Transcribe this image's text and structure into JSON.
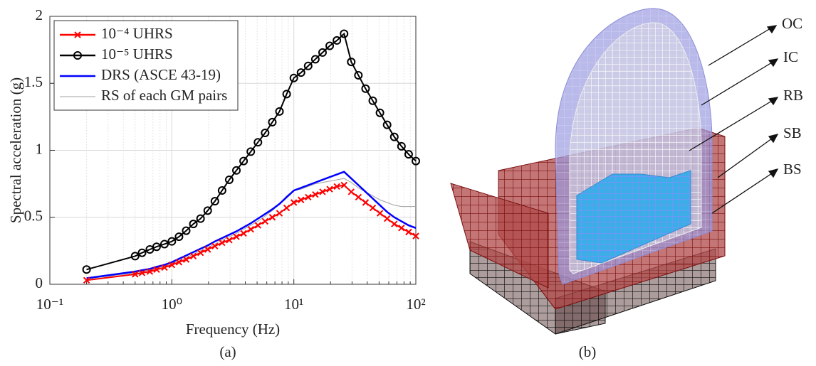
{
  "chart_data": {
    "type": "line",
    "y_label": "Spectral acceleration (g)",
    "x_label": "Frequency (Hz)",
    "caption": "(a)",
    "x": [
      0.2,
      0.5,
      0.57,
      0.66,
      0.75,
      0.87,
      1,
      1.145,
      1.311,
      1.501,
      1.719,
      1.968,
      2.254,
      2.581,
      2.955,
      3.383,
      3.874,
      4.436,
      5.08,
      5.816,
      6.66,
      7.626,
      8.733,
      10,
      11.45,
      13.11,
      15.01,
      17.19,
      19.68,
      22.54,
      25.81,
      29.55,
      33.83,
      38.74,
      44.36,
      50.8,
      58.16,
      66.6,
      76.26,
      87.33,
      100
    ],
    "series": [
      {
        "name": "10⁻⁴ UHRS",
        "color": "#ff0000",
        "marker": "x",
        "values": [
          0.03,
          0.075,
          0.085,
          0.095,
          0.11,
          0.125,
          0.145,
          0.165,
          0.185,
          0.21,
          0.235,
          0.26,
          0.285,
          0.31,
          0.33,
          0.355,
          0.38,
          0.41,
          0.44,
          0.47,
          0.5,
          0.53,
          0.57,
          0.61,
          0.63,
          0.65,
          0.67,
          0.69,
          0.71,
          0.73,
          0.74,
          0.69,
          0.65,
          0.61,
          0.57,
          0.53,
          0.49,
          0.45,
          0.42,
          0.39,
          0.36
        ]
      },
      {
        "name": "10⁻⁵ UHRS",
        "color": "#000000",
        "marker": "o",
        "values": [
          0.11,
          0.21,
          0.235,
          0.26,
          0.28,
          0.3,
          0.32,
          0.355,
          0.4,
          0.45,
          0.49,
          0.55,
          0.62,
          0.7,
          0.78,
          0.85,
          0.92,
          0.99,
          1.06,
          1.13,
          1.21,
          1.29,
          1.42,
          1.54,
          1.58,
          1.63,
          1.68,
          1.73,
          1.78,
          1.82,
          1.87,
          1.66,
          1.56,
          1.46,
          1.37,
          1.28,
          1.19,
          1.1,
          1.03,
          0.97,
          0.92
        ]
      },
      {
        "name": "DRS (ASCE 43-19)",
        "color": "#0000ff",
        "marker": "none",
        "values": [
          0.045,
          0.095,
          0.105,
          0.115,
          0.13,
          0.145,
          0.165,
          0.19,
          0.215,
          0.24,
          0.265,
          0.29,
          0.32,
          0.345,
          0.37,
          0.395,
          0.425,
          0.455,
          0.49,
          0.525,
          0.56,
          0.6,
          0.65,
          0.7,
          0.72,
          0.74,
          0.76,
          0.78,
          0.8,
          0.82,
          0.84,
          0.79,
          0.74,
          0.69,
          0.64,
          0.59,
          0.54,
          0.5,
          0.47,
          0.44,
          0.42
        ]
      },
      {
        "name": "RS of each GM pairs",
        "color": "#a0a0a0",
        "marker": "none",
        "values": [
          0.04,
          0.085,
          0.095,
          0.105,
          0.12,
          0.135,
          0.155,
          0.175,
          0.2,
          0.225,
          0.25,
          0.275,
          0.3,
          0.33,
          0.355,
          0.38,
          0.41,
          0.44,
          0.47,
          0.51,
          0.55,
          0.6,
          0.66,
          0.7,
          0.71,
          0.73,
          0.75,
          0.76,
          0.77,
          0.78,
          0.79,
          0.76,
          0.72,
          0.69,
          0.66,
          0.63,
          0.61,
          0.59,
          0.58,
          0.58,
          0.58
        ]
      }
    ],
    "x_scale": "log",
    "xlim": [
      0.1,
      100
    ],
    "xticks": [
      {
        "value": 0.1,
        "label": "10⁻¹"
      },
      {
        "value": 1,
        "label": "10⁰"
      },
      {
        "value": 10,
        "label": "10¹"
      },
      {
        "value": 100,
        "label": "10²"
      }
    ],
    "ylim": [
      0,
      2
    ],
    "yticks": [
      0,
      0.5,
      1,
      1.5,
      2
    ],
    "grid": true,
    "minor_grid": true,
    "legend": "upper left"
  },
  "diagram": {
    "labels": [
      "OC",
      "IC",
      "RB",
      "SB",
      "BS"
    ],
    "caption": "(b)"
  }
}
